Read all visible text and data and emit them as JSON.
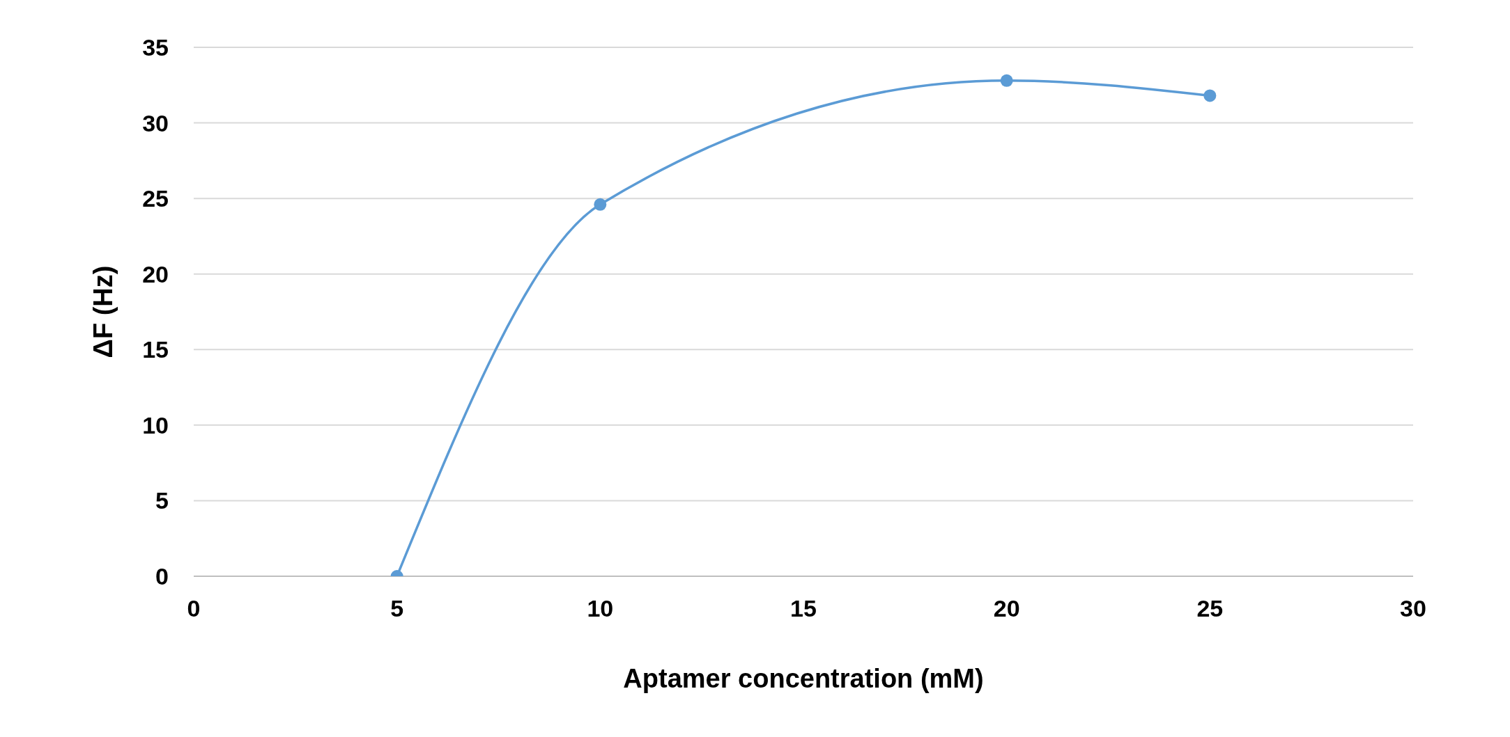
{
  "chart_data": {
    "type": "line",
    "xlabel": "Aptamer concentration (mM)",
    "ylabel": "ΔF (Hz)",
    "x": [
      5,
      10,
      20,
      25
    ],
    "series": [
      {
        "color": "#5b9bd5",
        "values": [
          0,
          24.6,
          32.8,
          31.8
        ]
      }
    ],
    "xlim": [
      0,
      30
    ],
    "xticks": [
      0,
      5,
      10,
      15,
      20,
      25,
      30
    ],
    "ylim": [
      0,
      35
    ],
    "yticks": [
      0,
      5,
      10,
      15,
      20,
      25,
      30,
      35
    ],
    "grid": "y",
    "marker": "circle",
    "line_style": "solid",
    "legend": false
  }
}
